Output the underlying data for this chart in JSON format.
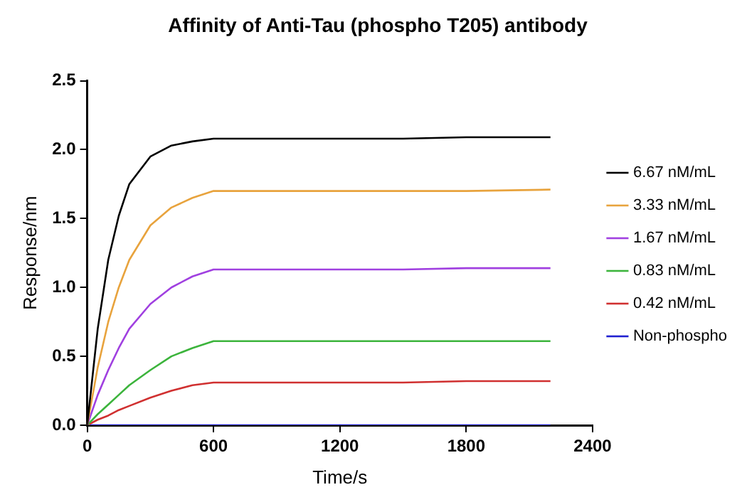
{
  "chart_data": {
    "type": "line",
    "title": "Affinity of Anti-Tau (phospho T205) antibody",
    "xlabel": "Time/s",
    "ylabel": "Response/nm",
    "x": [
      0,
      50,
      100,
      150,
      200,
      300,
      400,
      500,
      600,
      900,
      1200,
      1500,
      1800,
      2200
    ],
    "series": [
      {
        "name": "6.67 nM/mL",
        "color": "#000000",
        "values": [
          0,
          0.7,
          1.2,
          1.52,
          1.75,
          1.95,
          2.03,
          2.06,
          2.08,
          2.08,
          2.08,
          2.08,
          2.09,
          2.09
        ]
      },
      {
        "name": "3.33 nM/mL",
        "color": "#e8a33d",
        "values": [
          0,
          0.42,
          0.75,
          1.0,
          1.2,
          1.45,
          1.58,
          1.65,
          1.7,
          1.7,
          1.7,
          1.7,
          1.7,
          1.71
        ]
      },
      {
        "name": "1.67 nM/mL",
        "color": "#a040e0",
        "values": [
          0,
          0.22,
          0.4,
          0.56,
          0.7,
          0.88,
          1.0,
          1.08,
          1.13,
          1.13,
          1.13,
          1.13,
          1.14,
          1.14
        ]
      },
      {
        "name": "0.83 nM/mL",
        "color": "#3cb43c",
        "values": [
          0,
          0.08,
          0.15,
          0.22,
          0.29,
          0.4,
          0.5,
          0.56,
          0.61,
          0.61,
          0.61,
          0.61,
          0.61,
          0.61
        ]
      },
      {
        "name": "0.42 nM/mL",
        "color": "#d03030",
        "values": [
          0,
          0.04,
          0.07,
          0.11,
          0.14,
          0.2,
          0.25,
          0.29,
          0.31,
          0.31,
          0.31,
          0.31,
          0.32,
          0.32
        ]
      },
      {
        "name": "Non-phospho",
        "color": "#2020d0",
        "values": [
          0,
          0,
          0,
          0,
          0,
          0,
          0,
          0,
          0,
          0,
          0,
          0,
          0,
          0
        ]
      }
    ],
    "xlim": [
      0,
      2400
    ],
    "xticks": [
      0,
      600,
      1200,
      1800,
      2400
    ],
    "ylim": [
      0,
      2.5
    ],
    "yticks": [
      {
        "value": 0,
        "label": "0.0"
      },
      {
        "value": 0.5,
        "label": "0.5"
      },
      {
        "value": 1,
        "label": "1.0"
      },
      {
        "value": 1.5,
        "label": "1.5"
      },
      {
        "value": 2,
        "label": "2.0"
      },
      {
        "value": 2.5,
        "label": "2.5"
      }
    ],
    "grid": false,
    "legend": "right",
    "marker": "none",
    "line_style": "solid"
  }
}
